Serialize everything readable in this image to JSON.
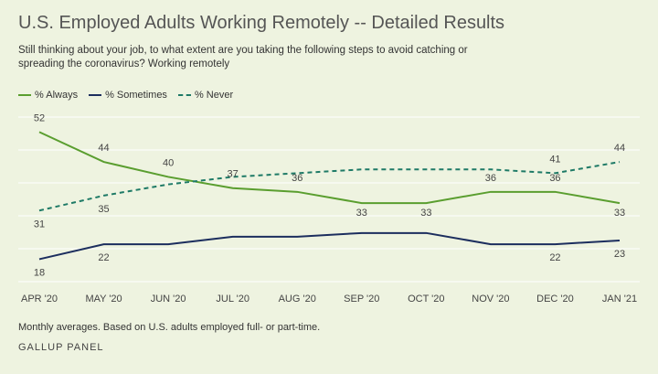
{
  "title": "U.S. Employed Adults Working Remotely -- Detailed Results",
  "subtitle": "Still thinking about your job, to what extent are you taking the following steps to avoid catching or spreading the coronavirus? Working remotely",
  "note": "Monthly averages. Based on U.S. adults employed full- or part-time.",
  "source": "GALLUP PANEL",
  "colors": {
    "always": "#5a9e2f",
    "sometimes": "#1c2e5e",
    "never": "#1e7a66",
    "grid": "#ffffff",
    "label": "#444444"
  },
  "chart_data": {
    "type": "line",
    "categories": [
      "APR '20",
      "MAY '20",
      "JUN '20",
      "JUL '20",
      "AUG '20",
      "SEP '20",
      "OCT '20",
      "NOV '20",
      "DEC '20",
      "JAN '21"
    ],
    "ylim": [
      12,
      56
    ],
    "series": [
      {
        "name": "% Always",
        "key": "always",
        "style": "solid",
        "values": [
          52,
          44,
          40,
          37,
          36,
          33,
          33,
          36,
          36,
          33
        ],
        "labels": [
          "52",
          "44",
          "40",
          "37",
          "36",
          "33",
          "33",
          "36",
          "36",
          "33"
        ]
      },
      {
        "name": "% Sometimes",
        "key": "sometimes",
        "style": "solid",
        "values": [
          18,
          22,
          22,
          24,
          24,
          25,
          25,
          22,
          22,
          23
        ],
        "labels": [
          "18",
          "22",
          null,
          null,
          null,
          null,
          null,
          null,
          "22",
          "23"
        ]
      },
      {
        "name": "% Never",
        "key": "never",
        "style": "dashed",
        "values": [
          31,
          35,
          38,
          40,
          41,
          42,
          42,
          42,
          41,
          44
        ],
        "labels": [
          "31",
          "35",
          null,
          null,
          null,
          null,
          null,
          null,
          "41",
          "44"
        ]
      }
    ]
  }
}
